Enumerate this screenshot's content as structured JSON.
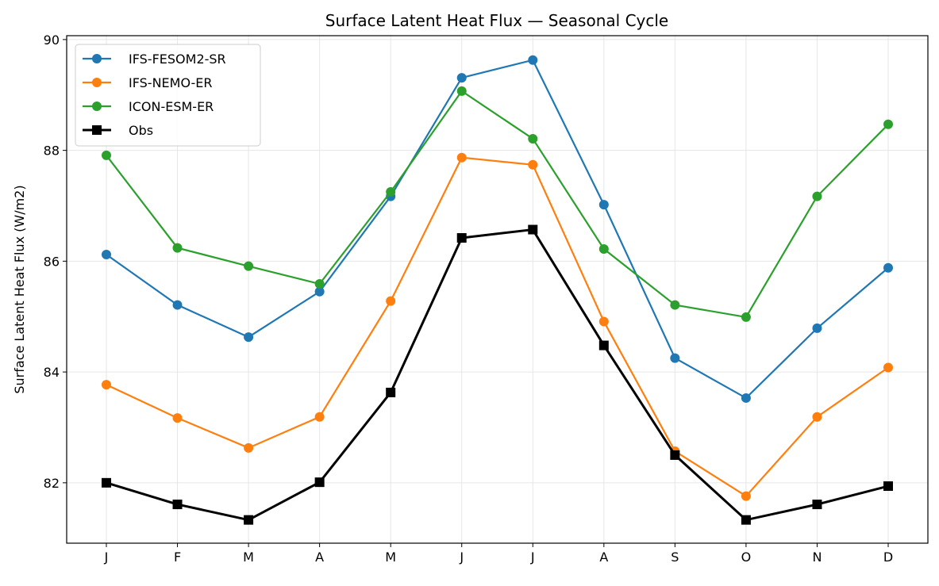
{
  "chart_data": {
    "type": "line",
    "title": "Surface Latent Heat Flux — Seasonal Cycle",
    "xlabel": "",
    "ylabel": "Surface Latent Heat Flux (W/m2)",
    "categories": [
      "J",
      "F",
      "M",
      "A",
      "M",
      "J",
      "J",
      "A",
      "S",
      "O",
      "N",
      "D"
    ],
    "ylim": [
      80.91,
      90.07
    ],
    "yticks": [
      82,
      84,
      86,
      88,
      90
    ],
    "grid": true,
    "legend": "top-left",
    "series": [
      {
        "name": "IFS-FESOM2-SR",
        "color": "#1f77b4",
        "marker": "circle",
        "values": [
          86.12,
          85.21,
          84.63,
          85.45,
          87.17,
          89.31,
          89.63,
          87.02,
          84.25,
          83.53,
          84.79,
          85.88
        ]
      },
      {
        "name": "IFS-NEMO-ER",
        "color": "#ff7f0e",
        "marker": "circle",
        "values": [
          83.77,
          83.17,
          82.63,
          83.19,
          85.28,
          87.87,
          87.74,
          84.91,
          82.57,
          81.76,
          83.19,
          84.08
        ]
      },
      {
        "name": "ICON-ESM-ER",
        "color": "#2ca02c",
        "marker": "circle",
        "values": [
          87.91,
          86.24,
          85.91,
          85.59,
          87.25,
          89.07,
          88.21,
          86.22,
          85.21,
          84.99,
          87.17,
          88.47
        ]
      },
      {
        "name": "Obs",
        "color": "#000000",
        "marker": "square",
        "values": [
          82.0,
          81.61,
          81.33,
          82.01,
          83.63,
          86.42,
          86.57,
          84.48,
          82.5,
          81.33,
          81.61,
          81.94
        ]
      }
    ]
  }
}
